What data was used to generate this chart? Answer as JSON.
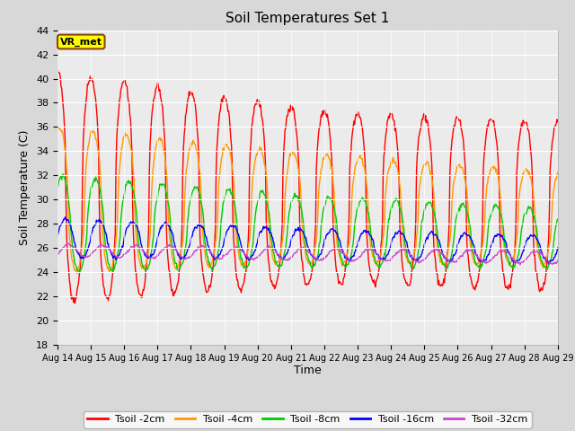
{
  "title": "Soil Temperatures Set 1",
  "xlabel": "Time",
  "ylabel": "Soil Temperature (C)",
  "ylim": [
    18,
    44
  ],
  "yticks": [
    18,
    20,
    22,
    24,
    26,
    28,
    30,
    32,
    34,
    36,
    38,
    40,
    42,
    44
  ],
  "x_tick_labels": [
    "Aug 14",
    "Aug 15",
    "Aug 16",
    "Aug 17",
    "Aug 18",
    "Aug 19",
    "Aug 20",
    "Aug 21",
    "Aug 22",
    "Aug 23",
    "Aug 24",
    "Aug 25",
    "Aug 26",
    "Aug 27",
    "Aug 28",
    "Aug 29"
  ],
  "colors": {
    "Tsoil -2cm": "#ff0000",
    "Tsoil -4cm": "#ff9900",
    "Tsoil -8cm": "#00cc00",
    "Tsoil -16cm": "#0000ff",
    "Tsoil -32cm": "#cc44cc"
  },
  "fig_bg_color": "#d8d8d8",
  "plot_bg_color": "#ebebeb",
  "grid_color": "#ffffff",
  "annotation_text": "VR_met",
  "annotation_bg": "#ffff00",
  "annotation_border": "#8B4513",
  "linewidth": 1.0
}
